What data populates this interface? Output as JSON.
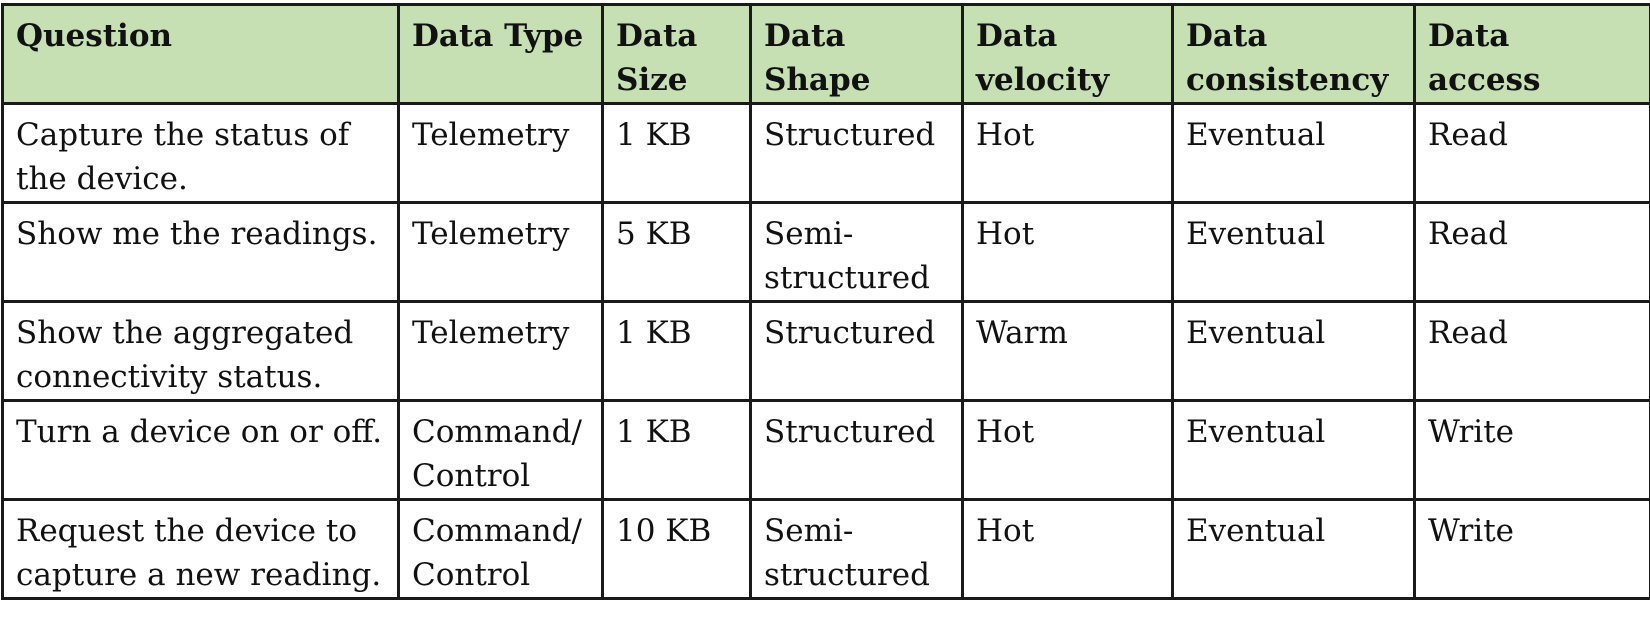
{
  "table": {
    "headers": [
      "Question",
      "Data Type",
      "Data\nSize",
      "Data Shape",
      "Data\nvelocity",
      "Data\nconsistency",
      "Data\naccess"
    ],
    "rows": [
      [
        "Capture the status of the device.",
        "Telemetry",
        "1 KB",
        "Structured",
        "Hot",
        "Eventual",
        "Read"
      ],
      [
        "Show me the readings.",
        "Telemetry",
        "5 KB",
        "Semi-\nstructured",
        "Hot",
        "Eventual",
        "Read"
      ],
      [
        "Show the aggregated connectivity status.",
        "Telemetry",
        "1 KB",
        "Structured",
        "Warm",
        "Eventual",
        "Read"
      ],
      [
        "Turn a device on or off.",
        "Command/\nControl",
        "1 KB",
        "Structured",
        "Hot",
        "Eventual",
        "Write"
      ],
      [
        "Request the device to capture a new reading.",
        "Command/\nControl",
        "10 KB",
        "Semi-\nstructured",
        "Hot",
        "Eventual",
        "Write"
      ]
    ]
  }
}
